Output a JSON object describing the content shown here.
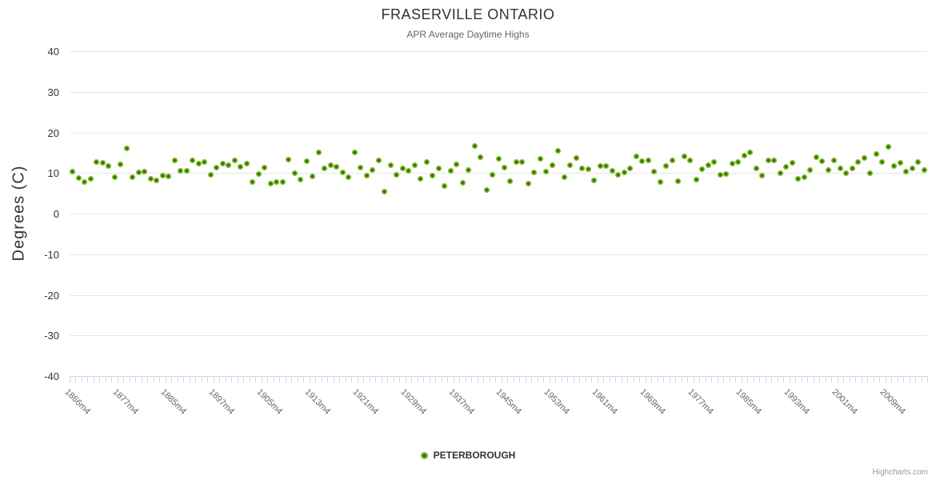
{
  "header": {
    "title": "FRASERVILLE ONTARIO",
    "subtitle": "APR Average Daytime Highs"
  },
  "legend": {
    "label": "PETERBOROUGH"
  },
  "credit": {
    "label": "Highcharts.com"
  },
  "colors": {
    "series": "#7db82e",
    "series_center": "#3b7304",
    "grid": "#e6e6e6",
    "axis_line": "#ccd6eb",
    "title_text": "#333333",
    "subtitle_text": "#666666",
    "x_label_text": "#666666",
    "y_label_text": "#333333",
    "credit_text": "#999999"
  },
  "chart_data": {
    "type": "scatter",
    "title": "FRASERVILLE ONTARIO",
    "subtitle": "APR Average Daytime Highs",
    "xlabel": "",
    "ylabel": "Degrees (C)",
    "ylim": [
      -40,
      40
    ],
    "ytick_interval": 10,
    "ytick_labels": [
      "40",
      "30",
      "20",
      "10",
      "0",
      "-10",
      "-20",
      "-30",
      "-40"
    ],
    "grid": "horizontal-only",
    "legend_position": "bottom-center",
    "x_label_every": 8,
    "series_name": "PETERBOROUGH",
    "categories": [
      "1866m4",
      "1867m4",
      "1868m4",
      "1869m4",
      "1873m4",
      "1874m4",
      "1875m4",
      "1876m4",
      "1877m4",
      "1878m4",
      "1879m4",
      "1880m4",
      "1881m4",
      "1882m4",
      "1883m4",
      "1884m4",
      "1885m4",
      "1886m4",
      "1891m4",
      "1892m4",
      "1893m4",
      "1894m4",
      "1895m4",
      "1896m4",
      "1897m4",
      "1898m4",
      "1899m4",
      "1900m4",
      "1901m4",
      "1902m4",
      "1903m4",
      "1904m4",
      "1905m4",
      "1906m4",
      "1907m4",
      "1908m4",
      "1909m4",
      "1910m4",
      "1911m4",
      "1912m4",
      "1913m4",
      "1914m4",
      "1915m4",
      "1916m4",
      "1917m4",
      "1918m4",
      "1919m4",
      "1920m4",
      "1921m4",
      "1922m4",
      "1923m4",
      "1924m4",
      "1925m4",
      "1926m4",
      "1927m4",
      "1928m4",
      "1929m4",
      "1930m4",
      "1931m4",
      "1932m4",
      "1933m4",
      "1934m4",
      "1935m4",
      "1936m4",
      "1937m4",
      "1938m4",
      "1939m4",
      "1940m4",
      "1941m4",
      "1942m4",
      "1943m4",
      "1944m4",
      "1945m4",
      "1946m4",
      "1947m4",
      "1948m4",
      "1949m4",
      "1950m4",
      "1951m4",
      "1952m4",
      "1953m4",
      "1954m4",
      "1955m4",
      "1956m4",
      "1957m4",
      "1958m4",
      "1959m4",
      "1960m4",
      "1961m4",
      "1962m4",
      "1963m4",
      "1964m4",
      "1965m4",
      "1966m4",
      "1967m4",
      "1968m4",
      "1969m4",
      "1970m4",
      "1971m4",
      "1972m4",
      "1973m4",
      "1974m4",
      "1975m4",
      "1976m4",
      "1977m4",
      "1978m4",
      "1979m4",
      "1980m4",
      "1981m4",
      "1982m4",
      "1983m4",
      "1984m4",
      "1985m4",
      "1986m4",
      "1987m4",
      "1988m4",
      "1989m4",
      "1990m4",
      "1991m4",
      "1992m4",
      "1993m4",
      "1994m4",
      "1995m4",
      "1996m4",
      "1997m4",
      "1998m4",
      "1999m4",
      "2000m4",
      "2001m4",
      "2002m4",
      "2003m4",
      "2004m4",
      "2005m4",
      "2006m4",
      "2007m4",
      "2008m4",
      "2009m4",
      "2010m4",
      "2011m4",
      "2012m4",
      "2013m4",
      "2014m4",
      "2015m4"
    ],
    "values": [
      10.4,
      8.8,
      7.7,
      8.5,
      12.8,
      12.6,
      11.8,
      8.9,
      12.2,
      16.0,
      9.0,
      10.1,
      10.3,
      8.6,
      8.1,
      9.4,
      9.2,
      13.2,
      10.5,
      10.6,
      13.2,
      12.4,
      12.8,
      9.5,
      11.3,
      12.3,
      12.0,
      13.1,
      11.6,
      12.4,
      7.8,
      9.8,
      11.3,
      7.3,
      7.8,
      7.8,
      13.3,
      10.0,
      8.3,
      13.0,
      9.1,
      15.0,
      11.2,
      11.9,
      11.5,
      10.2,
      9.0,
      15.1,
      11.4,
      9.3,
      10.7,
      13.2,
      5.5,
      11.9,
      9.5,
      11.2,
      10.6,
      11.9,
      8.5,
      12.8,
      9.3,
      11.2,
      6.8,
      10.6,
      12.1,
      7.6,
      10.8,
      16.7,
      13.9,
      5.8,
      9.5,
      13.4,
      11.3,
      7.9,
      12.8,
      12.8,
      7.4,
      10.2,
      13.5,
      10.4,
      11.9,
      15.5,
      8.9,
      11.9,
      13.7,
      11.2,
      11.0,
      8.2,
      11.7,
      11.7,
      10.6,
      9.6,
      10.2,
      11.2,
      14.0,
      13.0,
      13.2,
      10.4,
      7.7,
      11.8,
      13.2,
      8.0,
      14.0,
      13.2,
      8.4,
      10.9,
      11.9,
      12.7,
      9.6,
      9.7,
      12.3,
      12.8,
      14.2,
      15.0,
      11.2,
      9.3,
      13.2,
      13.2,
      9.9,
      11.6,
      12.6,
      8.6,
      8.9,
      10.8,
      13.8,
      13.0,
      10.8,
      13.1,
      11.1,
      10.0,
      11.1,
      12.8,
      13.6,
      10.0,
      14.6,
      12.7,
      16.5,
      11.7,
      12.5,
      10.4,
      11.1,
      12.7,
      10.7
    ]
  }
}
